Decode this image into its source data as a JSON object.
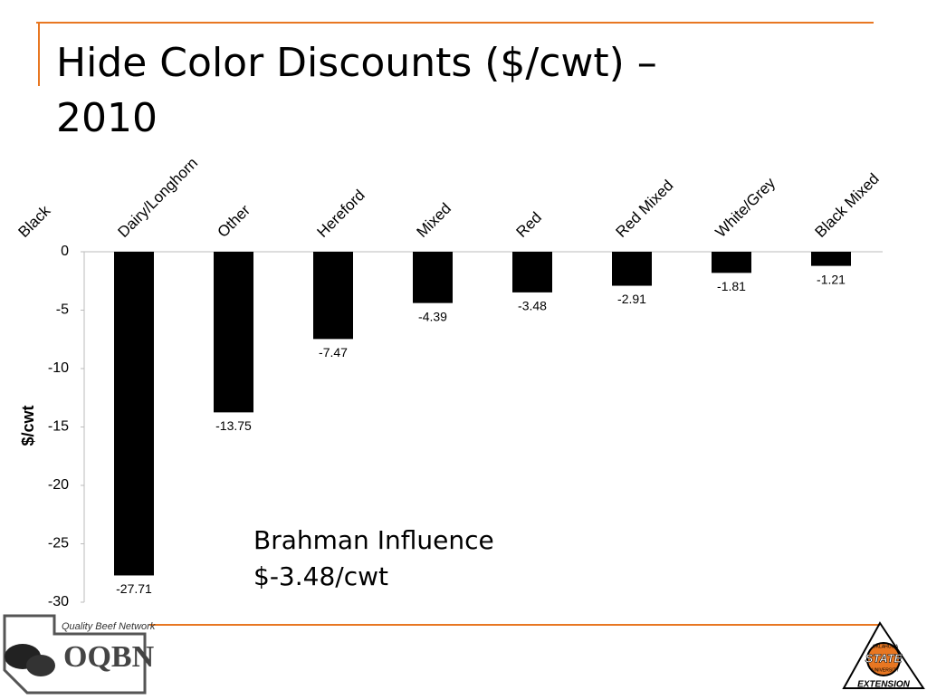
{
  "chart_data": {
    "type": "bar",
    "title_lines": [
      "Hide Color Discounts ($/cwt) –",
      "2010"
    ],
    "y_label": "$/cwt",
    "categories": [
      "Black",
      "Dairy/Longhorn",
      "Other",
      "Hereford",
      "Mixed",
      "Red",
      "Red Mixed",
      "White/Grey",
      "Black Mixed"
    ],
    "values": [
      null,
      -27.71,
      -13.75,
      -7.47,
      -4.39,
      -3.48,
      -2.91,
      -1.81,
      -1.21
    ],
    "color": "#000000",
    "ylim": [
      -30,
      0
    ],
    "yticks": [
      0,
      -5,
      -10,
      -15,
      -20,
      -25,
      -30
    ],
    "annotation_lines": [
      "Brahman Influence",
      "$-3.48/cwt"
    ]
  },
  "logos": {
    "left_caption": "Quality Beef Network",
    "left_mark": "OQBN",
    "right_top": "OKLAHOMA",
    "right_mark": "STATE",
    "right_sub": "UNIVERSITY",
    "right_bottom": "EXTENSION"
  }
}
